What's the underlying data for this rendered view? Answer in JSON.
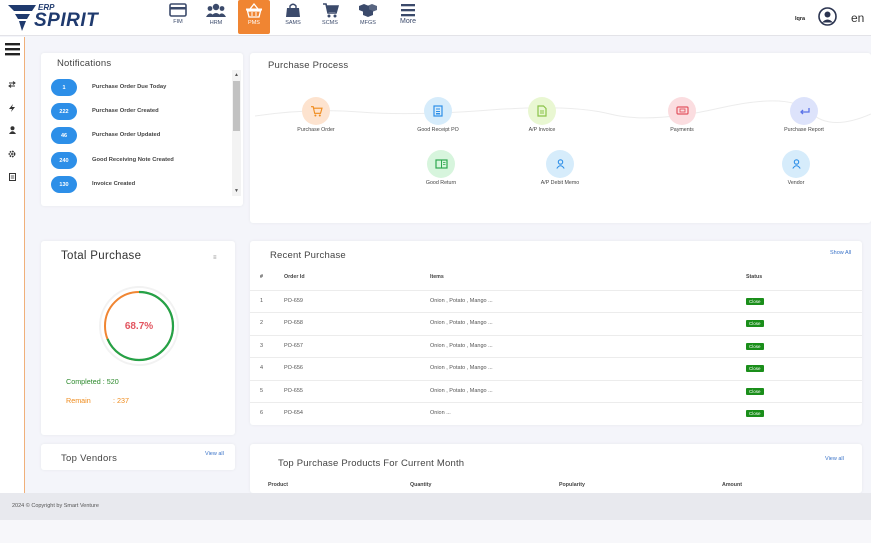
{
  "app": {
    "logo_top": "ERP",
    "logo_main": "SPIRIT",
    "user_name": "Iqra",
    "language": "en",
    "accent_color": "#f08532"
  },
  "modules": [
    {
      "label": "FIM",
      "icon": "card-icon"
    },
    {
      "label": "HRM",
      "icon": "users-icon"
    },
    {
      "label": "PMS",
      "icon": "basket-icon",
      "active": true
    },
    {
      "label": "SAMS",
      "icon": "bag-icon"
    },
    {
      "label": "SCMS",
      "icon": "cart-icon"
    },
    {
      "label": "MFGS",
      "icon": "boxes-icon"
    },
    {
      "label": "More",
      "icon": "menu-icon"
    }
  ],
  "notifications": {
    "title": "Notifications",
    "items": [
      {
        "count": "1",
        "text": "Purchase Order Due Today"
      },
      {
        "count": "222",
        "text": "Purchase Order Created"
      },
      {
        "count": "46",
        "text": "Purchase Order Updated"
      },
      {
        "count": "240",
        "text": "Good Receiving Note Created"
      },
      {
        "count": "130",
        "text": "Invoice Created"
      }
    ]
  },
  "purchase_process": {
    "title": "Purchase Process",
    "steps": [
      {
        "label": "Purchase Order"
      },
      {
        "label": "Good Receipt PO"
      },
      {
        "label": "A/P Invoice"
      },
      {
        "label": "Payments"
      },
      {
        "label": "Purchase Report"
      },
      {
        "label": "Good Return"
      },
      {
        "label": "A/P Debit Memo"
      },
      {
        "label": "Vendor"
      }
    ]
  },
  "total_purchase": {
    "title": "Total Purchase",
    "percent_label": "68.7%",
    "percent": 68.7,
    "completed_label": "Completed : 520",
    "remain_label": "Remain",
    "remain_value": ": 237"
  },
  "recent_purchase": {
    "title": "Recent Purchase",
    "show_all": "Show All",
    "columns": [
      "#",
      "Order Id",
      "Items",
      "Status"
    ],
    "rows": [
      {
        "n": "1",
        "id": "PO-659",
        "items": "Onion , Potato , Mango ...",
        "status": "Close"
      },
      {
        "n": "2",
        "id": "PO-658",
        "items": "Onion , Potato , Mango ...",
        "status": "Close"
      },
      {
        "n": "3",
        "id": "PO-657",
        "items": "Onion , Potato , Mango ...",
        "status": "Close"
      },
      {
        "n": "4",
        "id": "PO-656",
        "items": "Onion , Potato , Mango ...",
        "status": "Close"
      },
      {
        "n": "5",
        "id": "PO-655",
        "items": "Onion , Potato , Mango ...",
        "status": "Close"
      },
      {
        "n": "6",
        "id": "PO-654",
        "items": "Onion ...",
        "status": "Close"
      }
    ]
  },
  "top_vendors": {
    "title": "Top Vendors",
    "view_all": "View all"
  },
  "top_products": {
    "title": "Top Purchase Products For Current Month",
    "view_all": "View all",
    "columns": [
      "Product",
      "Quantity",
      "Popularity",
      "Amount"
    ]
  },
  "footer": {
    "copyright": "2024 © Copyright by Smart Venture"
  }
}
